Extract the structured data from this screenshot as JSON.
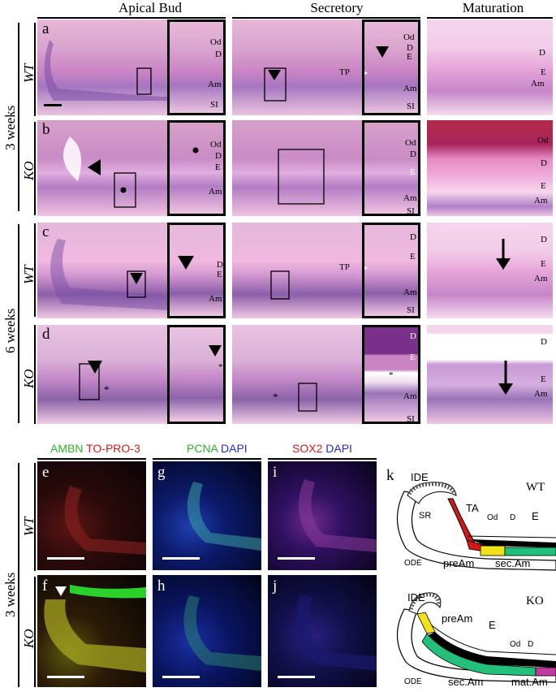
{
  "columns": {
    "apical_bud": "Apical Bud",
    "secretory": "Secretory",
    "maturation": "Maturation"
  },
  "age_labels": {
    "three_weeks": "3 weeks",
    "six_weeks": "6 weeks",
    "three_weeks_fluor": "3 weeks"
  },
  "genotype_labels": {
    "a": "WT",
    "b": "KO",
    "c": "WT",
    "d": "KO",
    "ef": "WT",
    "fk": "KO"
  },
  "panel_letters": [
    "a",
    "b",
    "c",
    "d",
    "e",
    "f",
    "g",
    "h",
    "i",
    "j",
    "k"
  ],
  "tissue_labels": {
    "a_zoom1": [
      "Od",
      "D",
      "Am",
      "SI"
    ],
    "a_zoom2": [
      "Od",
      "D",
      "E",
      "TP",
      "Am",
      "SI"
    ],
    "a_mat": [
      "D",
      "E",
      "Am"
    ],
    "b_zoom1": [
      "Od",
      "D",
      "E",
      "Am"
    ],
    "b_zoom2": [
      "Od",
      "D",
      "E",
      "Am",
      "SI"
    ],
    "b_mat": [
      "Od",
      "D",
      "E",
      "Am"
    ],
    "c_zoom1": [
      "D",
      "E",
      "Am"
    ],
    "c_zoom2": [
      "D",
      "E",
      "TP",
      "Am",
      "SI"
    ],
    "c_mat": [
      "D",
      "E",
      "Am"
    ],
    "d_zoom1": [
      "*"
    ],
    "d_zoom2": [
      "D",
      "E",
      "*",
      "Am",
      "SI"
    ],
    "d_mat": [
      "D",
      "E",
      "Am"
    ]
  },
  "stain_headers": {
    "col1": [
      {
        "text": "AMBN",
        "color": "#2bb52b"
      },
      {
        "text": "TO-PRO-3",
        "color": "#d01a1a"
      }
    ],
    "col2": [
      {
        "text": "PCNA",
        "color": "#2bb52b"
      },
      {
        "text": "DAPI",
        "color": "#2a2ad0"
      }
    ],
    "col3": [
      {
        "text": "SOX2",
        "color": "#d01a1a"
      },
      {
        "text": "DAPI",
        "color": "#2a2ad0"
      }
    ]
  },
  "schematic": {
    "wt": {
      "genotype": "WT",
      "labels": [
        "IDE",
        "SR",
        "TA",
        "Od",
        "D",
        "E",
        "ODE",
        "preAm",
        "sec.Am"
      ]
    },
    "ko": {
      "genotype": "KO",
      "labels": [
        "IDE",
        "preAm",
        "E",
        "Od",
        "D",
        "ODE",
        "sec.Am",
        "mat.Am"
      ]
    },
    "colors": {
      "TA": "#d01a1a",
      "preAm": "#f2e21a",
      "secAm": "#22c07a",
      "matAm": "#c23aa0",
      "enamel": "#000000"
    }
  }
}
